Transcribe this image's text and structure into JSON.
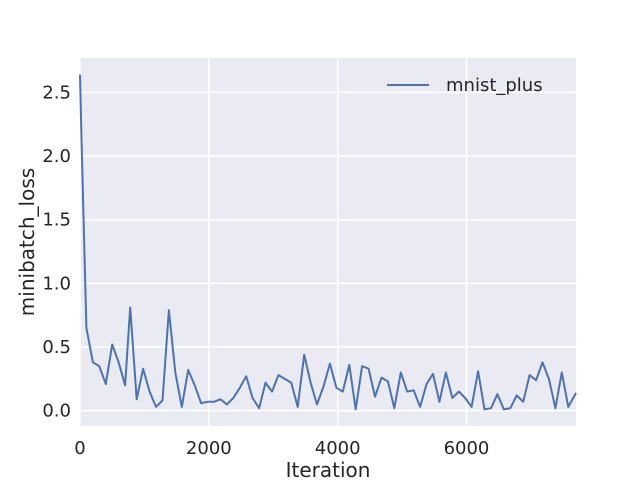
{
  "chart_data": {
    "type": "line",
    "xlabel": "Iteration",
    "ylabel": "minibatch_loss",
    "xlim": [
      0,
      7700
    ],
    "ylim": [
      -0.12,
      2.77
    ],
    "xticks": [
      0,
      2000,
      4000,
      6000
    ],
    "yticks": [
      0.0,
      0.5,
      1.0,
      1.5,
      2.0,
      2.5
    ],
    "xtick_labels": [
      "0",
      "2000",
      "4000",
      "6000"
    ],
    "ytick_labels": [
      "0.0",
      "0.5",
      "1.0",
      "1.5",
      "2.0",
      "2.5"
    ],
    "grid": true,
    "legend_position": "top-right",
    "series": [
      {
        "name": "mnist_plus",
        "color": "#4c72b0",
        "x": [
          0,
          20,
          100,
          200,
          300,
          400,
          500,
          600,
          700,
          780,
          880,
          980,
          1080,
          1180,
          1280,
          1380,
          1480,
          1580,
          1680,
          1780,
          1880,
          1980,
          2080,
          2180,
          2280,
          2380,
          2480,
          2580,
          2680,
          2780,
          2880,
          2980,
          3080,
          3180,
          3280,
          3380,
          3480,
          3580,
          3680,
          3780,
          3880,
          3980,
          4080,
          4180,
          4280,
          4380,
          4480,
          4580,
          4680,
          4780,
          4880,
          4980,
          5080,
          5180,
          5280,
          5380,
          5480,
          5580,
          5680,
          5780,
          5880,
          5980,
          6080,
          6180,
          6280,
          6380,
          6480,
          6580,
          6680,
          6780,
          6880,
          6980,
          7080,
          7180,
          7280,
          7380,
          7480,
          7580,
          7700
        ],
        "y": [
          2.64,
          2.2,
          0.65,
          0.38,
          0.35,
          0.21,
          0.52,
          0.38,
          0.2,
          0.81,
          0.09,
          0.33,
          0.15,
          0.03,
          0.08,
          0.79,
          0.3,
          0.03,
          0.32,
          0.2,
          0.06,
          0.07,
          0.07,
          0.09,
          0.05,
          0.1,
          0.18,
          0.27,
          0.1,
          0.02,
          0.22,
          0.15,
          0.28,
          0.25,
          0.22,
          0.03,
          0.44,
          0.22,
          0.05,
          0.19,
          0.37,
          0.18,
          0.15,
          0.36,
          0.01,
          0.35,
          0.33,
          0.11,
          0.26,
          0.23,
          0.02,
          0.3,
          0.15,
          0.16,
          0.03,
          0.21,
          0.29,
          0.07,
          0.3,
          0.1,
          0.15,
          0.1,
          0.03,
          0.31,
          0.01,
          0.02,
          0.13,
          0.01,
          0.02,
          0.12,
          0.07,
          0.28,
          0.24,
          0.38,
          0.25,
          0.02,
          0.3,
          0.03,
          0.14
        ]
      }
    ]
  }
}
